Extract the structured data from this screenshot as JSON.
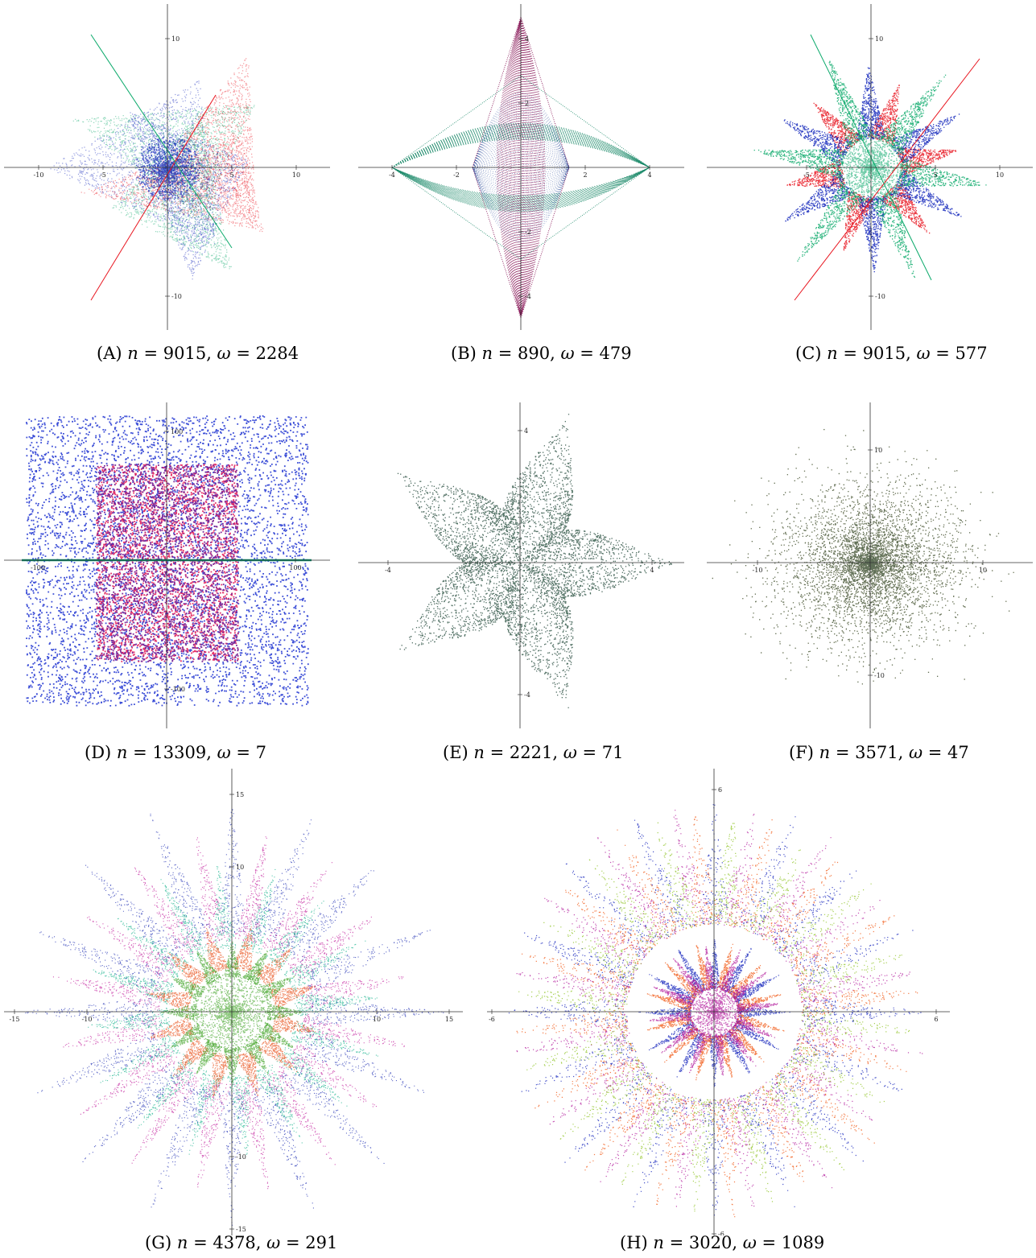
{
  "figure": {
    "panels": [
      {
        "id": "A",
        "label": "(A)",
        "n": "9015",
        "omega": "2284",
        "ticks_x": [
          "-10",
          "-5",
          "5",
          "10"
        ],
        "ticks_y": [
          "10",
          "-10"
        ],
        "colors": [
          "#e8141e",
          "#0a1fb8",
          "#0aa96a"
        ]
      },
      {
        "id": "B",
        "label": "(B)",
        "n": "890",
        "omega": "479",
        "ticks_x": [
          "-4",
          "-2",
          "2",
          "4"
        ],
        "ticks_y": [
          "4",
          "2",
          "-2",
          "-4"
        ],
        "colors": [
          "#1c8a6a",
          "#8a1a5a",
          "#2a4a9a"
        ]
      },
      {
        "id": "C",
        "label": "(C)",
        "n": "9015",
        "omega": "577",
        "ticks_x": [
          "-5",
          "5",
          "10"
        ],
        "ticks_y": [
          "10",
          "-10"
        ],
        "colors": [
          "#e8141e",
          "#0a1fb8",
          "#0aa96a"
        ]
      },
      {
        "id": "D",
        "label": "(D)",
        "n": "13309",
        "omega": "7",
        "ticks_x": [
          "-100",
          "100"
        ],
        "ticks_y": [
          "100",
          "-100"
        ],
        "colors": [
          "#1a2fd0",
          "#e01050",
          "#0a8a6a"
        ]
      },
      {
        "id": "E",
        "label": "(E)",
        "n": "2221",
        "omega": "71",
        "ticks_x": [
          "-4",
          "4"
        ],
        "ticks_y": [
          "4",
          "-4"
        ],
        "colors": [
          "#7a2a4a",
          "#2a5a8a",
          "#3a7a3a"
        ]
      },
      {
        "id": "F",
        "label": "(F)",
        "n": "3571",
        "omega": "47",
        "ticks_x": [
          "-10",
          "10"
        ],
        "ticks_y": [
          "10",
          "-10"
        ],
        "colors": [
          "#7a8a2a",
          "#8a3a2a",
          "#2a6a5a"
        ]
      },
      {
        "id": "G",
        "label": "(G)",
        "n": "4378",
        "omega": "291",
        "ticks_x": [
          "-15",
          "-10",
          "10",
          "15"
        ],
        "ticks_y": [
          "15",
          "10",
          "-10",
          "-15"
        ],
        "colors": [
          "#1a2ab0",
          "#c01a9a",
          "#12b08a",
          "#e8501a",
          "#3aa020"
        ]
      },
      {
        "id": "H",
        "label": "(H)",
        "n": "3020",
        "omega": "1089",
        "ticks_x": [
          "-6",
          "6"
        ],
        "ticks_y": [
          "6",
          "-6"
        ],
        "colors": [
          "#0a1ab8",
          "#b0169a",
          "#f0500a",
          "#8ac01a"
        ]
      }
    ]
  }
}
